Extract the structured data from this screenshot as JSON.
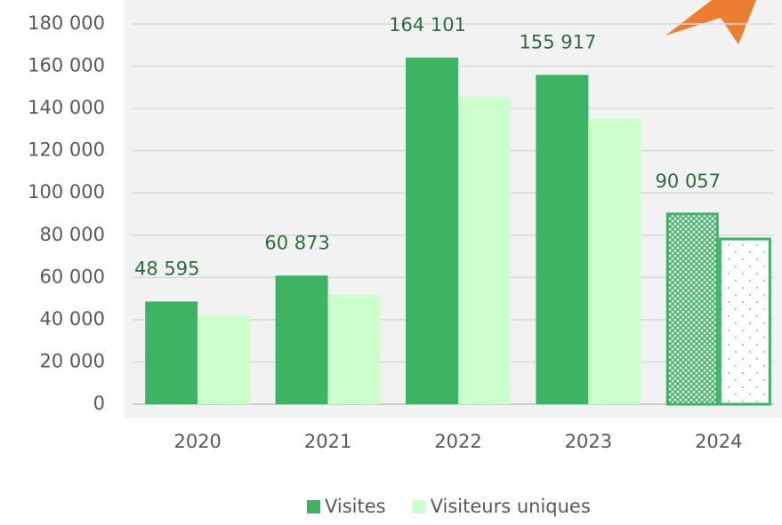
{
  "chart_data": {
    "type": "bar",
    "categories": [
      "2020",
      "2021",
      "2022",
      "2023",
      "2024"
    ],
    "series": [
      {
        "name": "Visites",
        "color": "#3cb463",
        "values": [
          48595,
          60873,
          164101,
          155917,
          90057
        ],
        "value_labels": [
          "48 595",
          "60 873",
          "164 101",
          "155 917",
          "90 057"
        ]
      },
      {
        "name": "Visiteurs uniques",
        "color": "#ccffcc",
        "values": [
          42000,
          52000,
          145500,
          135000,
          78200
        ]
      }
    ],
    "patterned": [
      false,
      false,
      false,
      false,
      true
    ],
    "ylim": [
      0,
      180000
    ],
    "yticks": [
      {
        "value": 0,
        "label": "0"
      },
      {
        "value": 20000,
        "label": "20 000"
      },
      {
        "value": 40000,
        "label": "40 000"
      },
      {
        "value": 60000,
        "label": "60 000"
      },
      {
        "value": 80000,
        "label": "80 000"
      },
      {
        "value": 100000,
        "label": "100 000"
      },
      {
        "value": 120000,
        "label": "120 000"
      },
      {
        "value": 140000,
        "label": "140 000"
      },
      {
        "value": 160000,
        "label": "160 000"
      },
      {
        "value": 180000,
        "label": "180 000"
      }
    ],
    "grid": true,
    "legend": "bottom"
  }
}
